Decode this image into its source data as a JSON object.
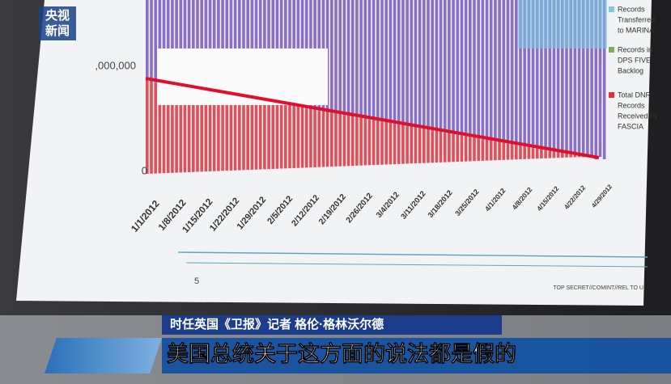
{
  "logo": {
    "line1": "央视",
    "line2": "新闻"
  },
  "document": {
    "y_axis_labels": [
      ",000,000",
      "0"
    ],
    "x_axis_labels": [
      "1/1/2012",
      "1/8/2012",
      "1/15/2012",
      "1/22/2012",
      "1/29/2012",
      "2/5/2012",
      "2/12/2012",
      "2/19/2012",
      "2/26/2012",
      "3/4/2012",
      "3/11/2012",
      "3/18/2012",
      "3/25/2012",
      "4/1/2012",
      "4/8/2012",
      "4/15/2012",
      "4/22/2012",
      "4/29/2012"
    ],
    "legend": [
      [
        "Records",
        "Transferred",
        "to MARINA"
      ],
      [
        "Records in",
        "DPS FIVE",
        "Backlog"
      ],
      [
        "Total DNR",
        "Records",
        "Received by",
        "FASCIA"
      ]
    ],
    "page_number": "5",
    "footer": "TOP SECRET//COMINT//REL TO U"
  },
  "caption": {
    "speaker": "时任英国《卫报》记者 格伦·格林沃尔德",
    "subtitle": "美国总统关于这方面的说法都是假的"
  }
}
